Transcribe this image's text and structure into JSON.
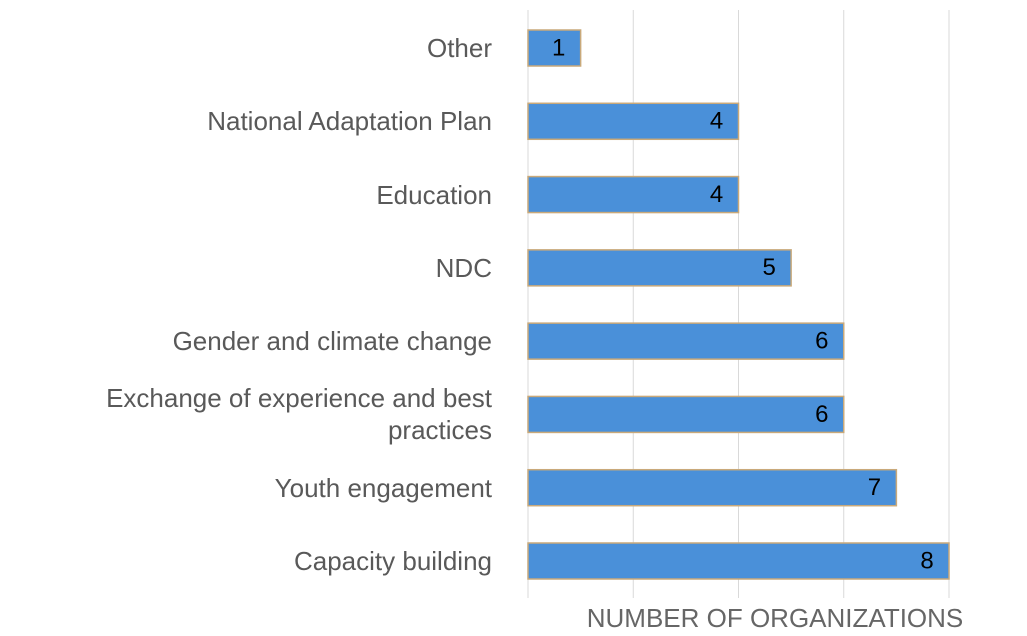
{
  "chart_data": {
    "type": "bar",
    "orientation": "horizontal",
    "x_label": "NUMBER OF ORGANIZATIONS",
    "categories": [
      "Other",
      "National Adaptation Plan",
      "Education",
      "NDC",
      "Gender and climate change",
      "Exchange of experience and best practices",
      "Youth engagement",
      "Capacity building"
    ],
    "values": [
      1,
      4,
      4,
      5,
      6,
      6,
      7,
      8
    ],
    "color": "#4a90d9",
    "xlim": [
      0,
      8
    ],
    "xticks": [
      0,
      2,
      4,
      6,
      8
    ],
    "grid": true
  }
}
